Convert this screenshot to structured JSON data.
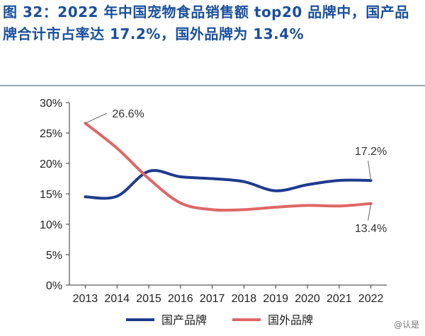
{
  "title": "图 32：2022 年中国宠物食品销售额 top20 品牌中，国产品牌合计市占率达 17.2%，国外品牌为 13.4%",
  "watermark": "@认是",
  "colors": {
    "domestic": "#1f3a8f",
    "foreign": "#e06666",
    "axis": "#333333",
    "title": "#1a4f9c"
  },
  "chart_data": {
    "type": "line",
    "x": [
      "2013",
      "2014",
      "2015",
      "2016",
      "2017",
      "2018",
      "2019",
      "2020",
      "2021",
      "2022"
    ],
    "y_ticks": [
      "0%",
      "5%",
      "10%",
      "15%",
      "20%",
      "25%",
      "30%"
    ],
    "ylim": [
      0,
      30
    ],
    "grid": false,
    "legend_position": "bottom",
    "series": [
      {
        "name": "国产品牌",
        "values": [
          14.5,
          14.6,
          18.7,
          17.8,
          17.5,
          17.0,
          15.5,
          16.5,
          17.2,
          17.2
        ]
      },
      {
        "name": "国外品牌",
        "values": [
          26.6,
          22.5,
          17.5,
          13.5,
          12.4,
          12.4,
          12.8,
          13.1,
          13.0,
          13.4
        ]
      }
    ],
    "annotations": [
      {
        "series": 1,
        "index": 0,
        "text": "26.6%"
      },
      {
        "series": 0,
        "index": 9,
        "text": "17.2%"
      },
      {
        "series": 1,
        "index": 9,
        "text": "13.4%"
      }
    ]
  }
}
